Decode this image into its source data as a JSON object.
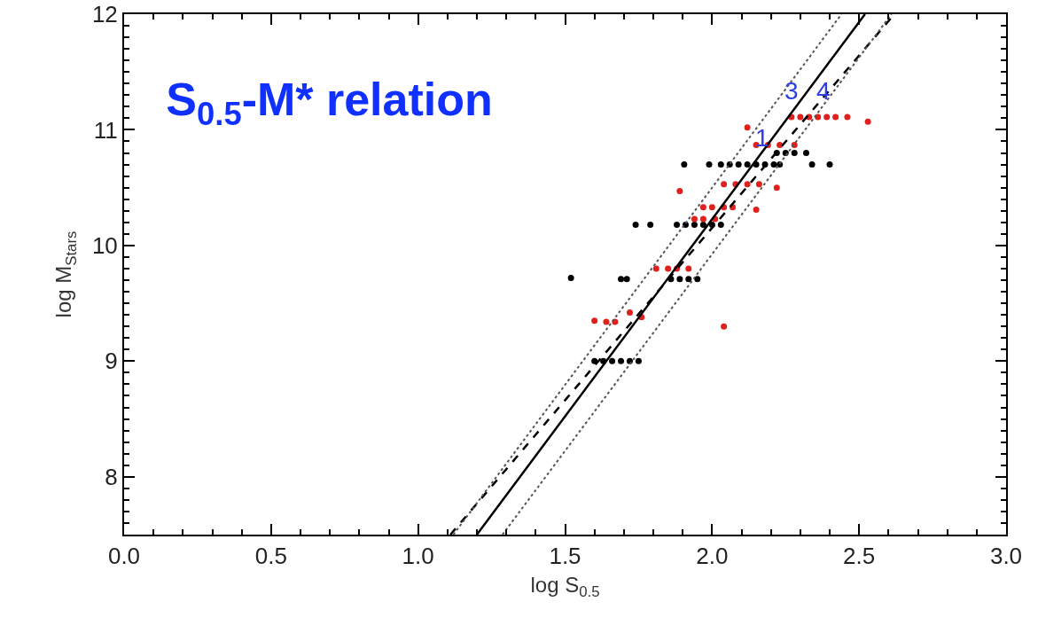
{
  "chart_data": {
    "type": "scatter",
    "title": "S$_{0.5}$-M* relation",
    "xlabel": "log S$_{0.5}$",
    "ylabel": "log M$_{Stars}$",
    "xlim": [
      0,
      3
    ],
    "xticks": [
      {
        "value": 0,
        "label": "0.0"
      },
      {
        "value": 0.5,
        "label": "0.5"
      },
      {
        "value": 1,
        "label": "1.0"
      },
      {
        "value": 1.5,
        "label": "1.5"
      },
      {
        "value": 2,
        "label": "2.0"
      },
      {
        "value": 2.5,
        "label": "2.5"
      },
      {
        "value": 3,
        "label": "3.0"
      }
    ],
    "ylim": [
      7.5,
      12
    ],
    "yticks": [
      8,
      9,
      10,
      11,
      12
    ],
    "grid": false,
    "legend": false,
    "annotations": [
      {
        "text": "1",
        "x": 2.17,
        "y": 10.8
      },
      {
        "text": "3",
        "x": 2.27,
        "y": 11.2
      },
      {
        "text": "4",
        "x": 2.38,
        "y": 11.2
      }
    ],
    "series": [
      {
        "marker": "circle",
        "color": "#000000",
        "x": [
          2.03,
          2.06,
          2.09,
          2.12,
          2.15,
          2.18,
          2.21,
          2.23,
          1.905,
          1.99,
          2.34,
          2.4,
          2.22,
          2.25,
          2.28,
          2.32,
          1.88,
          1.91,
          1.94,
          1.97,
          2.0,
          2.03,
          1.74,
          1.79,
          1.86,
          1.89,
          1.92,
          1.95,
          1.52,
          1.69,
          1.71,
          1.6,
          1.63,
          1.66,
          1.69,
          1.72,
          1.75
        ],
        "values": [
          10.7,
          10.7,
          10.7,
          10.7,
          10.7,
          10.7,
          10.7,
          10.7,
          10.7,
          10.7,
          10.7,
          10.7,
          10.8,
          10.8,
          10.8,
          10.8,
          10.18,
          10.18,
          10.18,
          10.18,
          10.18,
          10.18,
          10.18,
          10.18,
          9.71,
          9.71,
          9.71,
          9.71,
          9.72,
          9.71,
          9.71,
          9.0,
          9.0,
          9.0,
          9.0,
          9.0,
          9.0
        ]
      },
      {
        "marker": "circle",
        "color": "#e0201c",
        "x": [
          2.27,
          2.3,
          2.33,
          2.36,
          2.39,
          2.42,
          2.46,
          2.53,
          2.12,
          2.15,
          2.19,
          2.23,
          2.28,
          2.04,
          2.08,
          2.12,
          2.16,
          1.89,
          2.22,
          1.97,
          2.0,
          2.04,
          2.07,
          2.15,
          1.94,
          1.97,
          2.01,
          1.81,
          1.85,
          1.88,
          1.92,
          1.6,
          1.64,
          1.67,
          1.72,
          1.76,
          2.04
        ],
        "values": [
          11.11,
          11.11,
          11.11,
          11.11,
          11.11,
          11.11,
          11.11,
          11.07,
          11.02,
          10.87,
          10.87,
          10.87,
          10.87,
          10.53,
          10.53,
          10.53,
          10.53,
          10.47,
          10.5,
          10.33,
          10.33,
          10.33,
          10.33,
          10.31,
          10.23,
          10.23,
          10.23,
          9.8,
          9.8,
          9.8,
          9.8,
          9.35,
          9.34,
          9.34,
          9.42,
          9.38,
          9.3
        ]
      },
      {
        "type": "line",
        "marker": "none",
        "line_style": "solid",
        "color": "#000000",
        "x": [
          1.2,
          2.52
        ],
        "values": [
          7.5,
          12
        ]
      },
      {
        "type": "line",
        "marker": "none",
        "line_style": "dashed",
        "color": "#000000",
        "x": [
          1.11,
          2.62
        ],
        "values": [
          7.5,
          12
        ]
      },
      {
        "type": "line",
        "marker": "none",
        "line_style": "dotted",
        "color": "#555555",
        "x": [
          1.12,
          2.44
        ],
        "values": [
          7.5,
          12
        ]
      },
      {
        "type": "line",
        "marker": "none",
        "line_style": "dotted",
        "color": "#555555",
        "x": [
          1.287,
          2.61
        ],
        "values": [
          7.5,
          12
        ]
      }
    ]
  }
}
